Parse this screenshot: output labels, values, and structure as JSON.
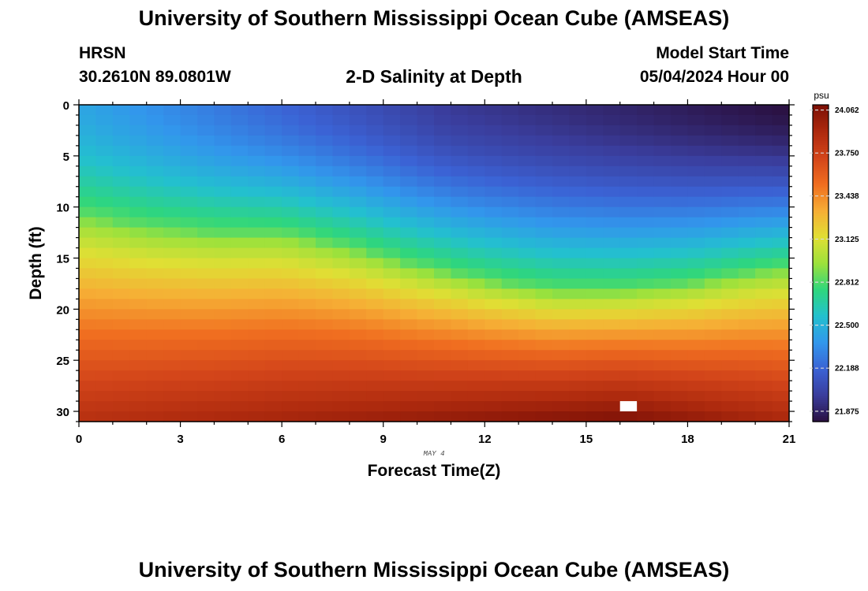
{
  "header": {
    "title": "University of Southern Mississippi Ocean Cube (AMSEAS)",
    "station": "HRSN",
    "coordinates": "30.2610N  89.0801W",
    "subtitle": "2-D Salinity at Depth",
    "model_start_label": "Model Start Time",
    "model_start_value": "05/04/2024 Hour 00"
  },
  "footer": {
    "title": "University of Southern Mississippi Ocean Cube (AMSEAS)"
  },
  "chart_data": {
    "type": "heatmap",
    "title": "2-D Salinity at Depth",
    "xlabel": "Forecast Time(Z)",
    "ylabel": "Depth (ft)",
    "date_label": "MAY 4",
    "x_range": [
      0,
      21
    ],
    "y_range": [
      0,
      31
    ],
    "y_inverted": true,
    "x_ticks": [
      0,
      3,
      6,
      9,
      12,
      15,
      18,
      21
    ],
    "y_ticks": [
      0,
      5,
      10,
      15,
      20,
      25,
      30
    ],
    "x_step_hours": 0.5,
    "y_step_ft": 1,
    "colorbar": {
      "unit": "psu",
      "min": 21.8,
      "max": 24.1,
      "tick_values": [
        24.062,
        23.75,
        23.438,
        23.125,
        22.812,
        22.5,
        22.188,
        21.875
      ],
      "tick_labels": [
        "24.062",
        "23.750",
        "23.438",
        "23.125",
        "22.812",
        "22.500",
        "22.188",
        "21.875"
      ],
      "colors": [
        "#2a1040",
        "#3a3d9c",
        "#3b62d4",
        "#3296ec",
        "#23c0cf",
        "#2ed67e",
        "#9ce13c",
        "#e0df34",
        "#f6ae35",
        "#f06e20",
        "#d3451a",
        "#ae2a0e",
        "#7c1006"
      ]
    },
    "boundary_profile": {
      "description": "depth (ft) of the ~22.8 psu isohaline vs forecast hour",
      "hours": [
        0,
        2,
        4,
        6,
        8,
        10,
        12,
        14,
        16,
        18,
        20,
        21
      ],
      "depth_ft": [
        10.8,
        12.0,
        12.6,
        12.6,
        14.0,
        15.8,
        17.2,
        18.2,
        18.2,
        17.6,
        16.4,
        16.0
      ]
    },
    "missing_cell": {
      "hour": 16.0,
      "depth_ft": 29
    },
    "surface_salinity_psu": {
      "hour_0": 22.45,
      "hour_11": 21.98,
      "hour_21": 21.8
    },
    "bottom_salinity_psu": {
      "hour_0": 23.85,
      "hour_16": 24.06,
      "hour_21": 23.9
    }
  }
}
